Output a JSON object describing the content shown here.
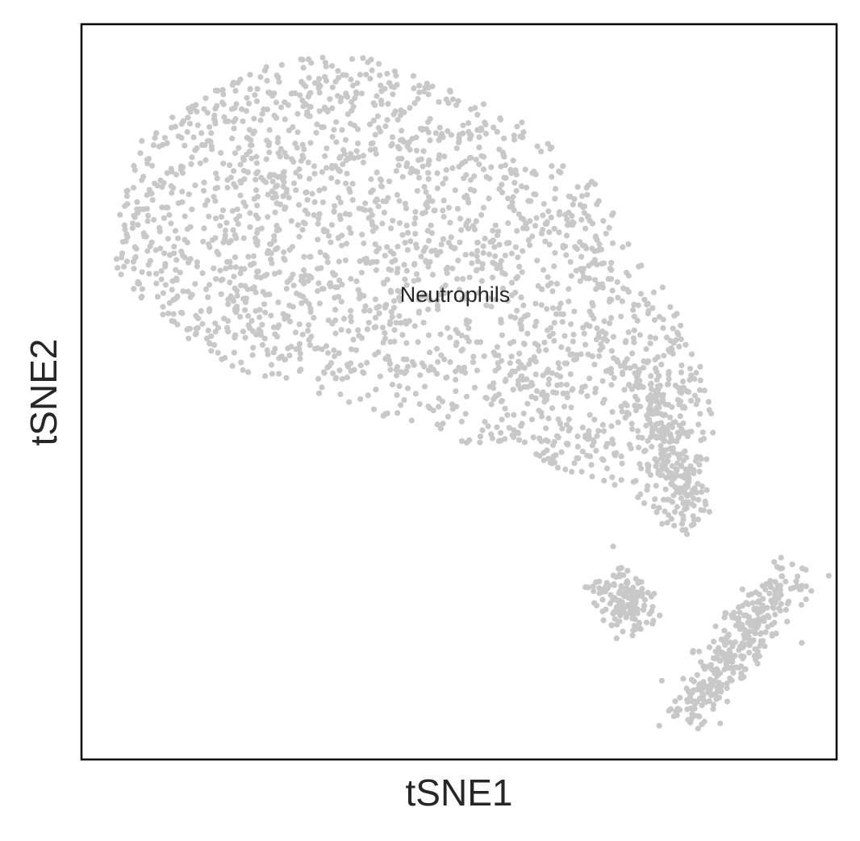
{
  "chart_data": {
    "type": "scatter",
    "title": "",
    "xlabel": "tSNE1",
    "ylabel": "tSNE2",
    "xticks": [],
    "yticks": [],
    "grid": false,
    "legend": "none",
    "point_color": "#c8c8c8",
    "annotations": [
      {
        "text": "Neutrophils",
        "x": 0,
        "y": 0
      }
    ],
    "clusters": [
      {
        "name": "main",
        "approx_points": 2200
      },
      {
        "name": "small-middle",
        "approx_points": 130
      },
      {
        "name": "small-right",
        "approx_points": 330
      }
    ]
  }
}
